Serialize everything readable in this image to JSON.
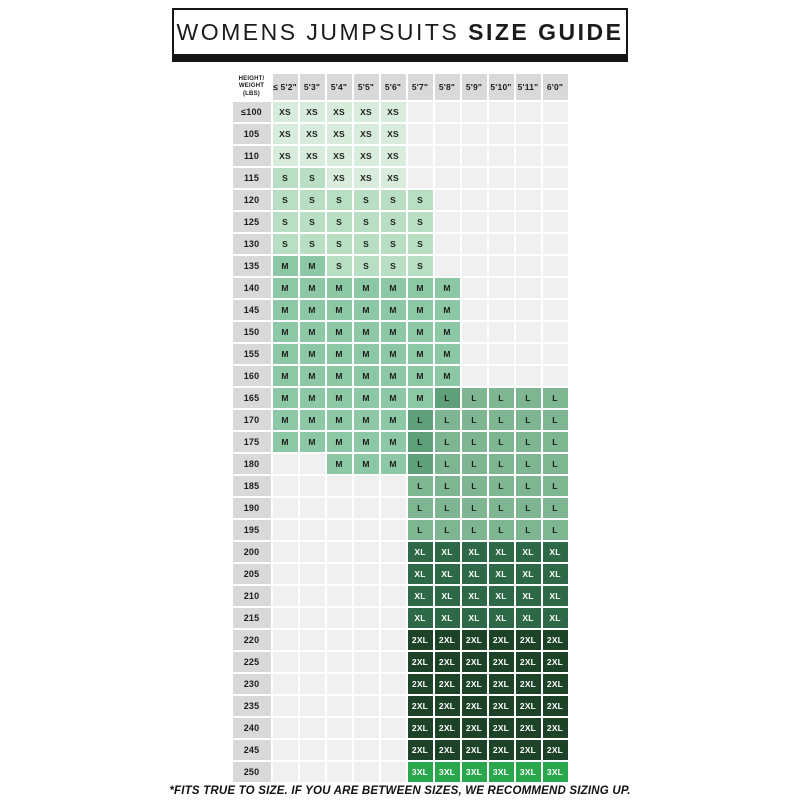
{
  "title": {
    "regular": "WOMENS JUMPSUITS ",
    "bold": "SIZE GUIDE"
  },
  "table": {
    "corner_label": "HEIGHT/\nWEIGHT\n(LBS)",
    "columns": [
      "≤ 5'2\"",
      "5'3\"",
      "5'4\"",
      "5'5\"",
      "5'6\"",
      "5'7\"",
      "5'8\"",
      "5'9\"",
      "5'10\"",
      "5'11\"",
      "6'0\""
    ],
    "rows": [
      {
        "weight": "≤100",
        "cells": [
          "XS",
          "XS",
          "XS",
          "XS",
          "XS",
          "",
          "",
          "",
          "",
          "",
          ""
        ]
      },
      {
        "weight": "105",
        "cells": [
          "XS",
          "XS",
          "XS",
          "XS",
          "XS",
          "",
          "",
          "",
          "",
          "",
          ""
        ]
      },
      {
        "weight": "110",
        "cells": [
          "XS",
          "XS",
          "XS",
          "XS",
          "XS",
          "",
          "",
          "",
          "",
          "",
          ""
        ]
      },
      {
        "weight": "115",
        "cells": [
          "S",
          "S",
          "XS",
          "XS",
          "XS",
          "",
          "",
          "",
          "",
          "",
          ""
        ]
      },
      {
        "weight": "120",
        "cells": [
          "S",
          "S",
          "S",
          "S",
          "S",
          "S",
          "",
          "",
          "",
          "",
          ""
        ]
      },
      {
        "weight": "125",
        "cells": [
          "S",
          "S",
          "S",
          "S",
          "S",
          "S",
          "",
          "",
          "",
          "",
          ""
        ]
      },
      {
        "weight": "130",
        "cells": [
          "S",
          "S",
          "S",
          "S",
          "S",
          "S",
          "",
          "",
          "",
          "",
          ""
        ]
      },
      {
        "weight": "135",
        "cells": [
          "M",
          "M",
          "S",
          "S",
          "S",
          "S",
          "",
          "",
          "",
          "",
          ""
        ]
      },
      {
        "weight": "140",
        "cells": [
          "M",
          "M",
          "M",
          "M",
          "M",
          "M",
          "M",
          "",
          "",
          "",
          ""
        ]
      },
      {
        "weight": "145",
        "cells": [
          "M",
          "M",
          "M",
          "M",
          "M",
          "M",
          "M",
          "",
          "",
          "",
          ""
        ]
      },
      {
        "weight": "150",
        "cells": [
          "M",
          "M",
          "M",
          "M",
          "M",
          "M",
          "M",
          "",
          "",
          "",
          ""
        ]
      },
      {
        "weight": "155",
        "cells": [
          "M",
          "M",
          "M",
          "M",
          "M",
          "M",
          "M",
          "",
          "",
          "",
          ""
        ]
      },
      {
        "weight": "160",
        "cells": [
          "M",
          "M",
          "M",
          "M",
          "M",
          "M",
          "M",
          "",
          "",
          "",
          ""
        ]
      },
      {
        "weight": "165",
        "cells": [
          "M",
          "M",
          "M",
          "M",
          "M",
          "M",
          "L*",
          "L",
          "L",
          "L",
          "L"
        ]
      },
      {
        "weight": "170",
        "cells": [
          "M",
          "M",
          "M",
          "M",
          "M",
          "L*",
          "L",
          "L",
          "L",
          "L",
          "L"
        ]
      },
      {
        "weight": "175",
        "cells": [
          "M",
          "M",
          "M",
          "M",
          "M",
          "L*",
          "L",
          "L",
          "L",
          "L",
          "L"
        ]
      },
      {
        "weight": "180",
        "cells": [
          "",
          "",
          "M",
          "M",
          "M",
          "L*",
          "L",
          "L",
          "L",
          "L",
          "L"
        ]
      },
      {
        "weight": "185",
        "cells": [
          "",
          "",
          "",
          "",
          "",
          "L",
          "L",
          "L",
          "L",
          "L",
          "L"
        ]
      },
      {
        "weight": "190",
        "cells": [
          "",
          "",
          "",
          "",
          "",
          "L",
          "L",
          "L",
          "L",
          "L",
          "L"
        ]
      },
      {
        "weight": "195",
        "cells": [
          "",
          "",
          "",
          "",
          "",
          "L",
          "L",
          "L",
          "L",
          "L",
          "L"
        ]
      },
      {
        "weight": "200",
        "cells": [
          "",
          "",
          "",
          "",
          "",
          "XL",
          "XL",
          "XL",
          "XL",
          "XL",
          "XL"
        ]
      },
      {
        "weight": "205",
        "cells": [
          "",
          "",
          "",
          "",
          "",
          "XL",
          "XL",
          "XL",
          "XL",
          "XL",
          "XL"
        ]
      },
      {
        "weight": "210",
        "cells": [
          "",
          "",
          "",
          "",
          "",
          "XL",
          "XL",
          "XL",
          "XL",
          "XL",
          "XL"
        ]
      },
      {
        "weight": "215",
        "cells": [
          "",
          "",
          "",
          "",
          "",
          "XL",
          "XL",
          "XL",
          "XL",
          "XL",
          "XL"
        ]
      },
      {
        "weight": "220",
        "cells": [
          "",
          "",
          "",
          "",
          "",
          "2XL",
          "2XL",
          "2XL",
          "2XL",
          "2XL",
          "2XL"
        ]
      },
      {
        "weight": "225",
        "cells": [
          "",
          "",
          "",
          "",
          "",
          "2XL",
          "2XL",
          "2XL",
          "2XL",
          "2XL",
          "2XL"
        ]
      },
      {
        "weight": "230",
        "cells": [
          "",
          "",
          "",
          "",
          "",
          "2XL",
          "2XL",
          "2XL",
          "2XL",
          "2XL",
          "2XL"
        ]
      },
      {
        "weight": "235",
        "cells": [
          "",
          "",
          "",
          "",
          "",
          "2XL",
          "2XL",
          "2XL",
          "2XL",
          "2XL",
          "2XL"
        ]
      },
      {
        "weight": "240",
        "cells": [
          "",
          "",
          "",
          "",
          "",
          "2XL",
          "2XL",
          "2XL",
          "2XL",
          "2XL",
          "2XL"
        ]
      },
      {
        "weight": "245",
        "cells": [
          "",
          "",
          "",
          "",
          "",
          "2XL",
          "2XL",
          "2XL",
          "2XL",
          "2XL",
          "2XL"
        ]
      },
      {
        "weight": "250",
        "cells": [
          "",
          "",
          "",
          "",
          "",
          "3XL",
          "3XL",
          "3XL",
          "3XL",
          "3XL",
          "3XL"
        ]
      }
    ]
  },
  "footer": "*FITS TRUE TO SIZE. IF YOU ARE BETWEEN SIZES, WE RECOMMEND SIZING UP.",
  "colors": {
    "XS": {
      "bg": "#d7ecdb",
      "text": "#1c1c1c"
    },
    "S": {
      "bg": "#b8dfc4",
      "text": "#1c1c1c"
    },
    "M": {
      "bg": "#8cc8a5",
      "text": "#1c1c1c"
    },
    "L": {
      "bg": "#7db691",
      "text": "#1c1c1c"
    },
    "L*": {
      "bg": "#5fa07a",
      "text": "#1c1c1c"
    },
    "XL": {
      "bg": "#2d6946",
      "text": "#ffffff"
    },
    "2XL": {
      "bg": "#1c4228",
      "text": "#ffffff"
    },
    "3XL": {
      "bg": "#28a74d",
      "text": "#ffffff"
    },
    "empty": {
      "bg": "#f0f0f0",
      "text": "#1c1c1c"
    },
    "header_bg": "#d9d9d9",
    "title_border": "#151515"
  }
}
